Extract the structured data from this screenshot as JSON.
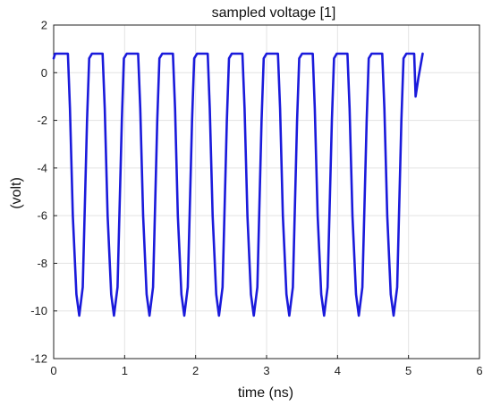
{
  "chart_data": {
    "type": "line",
    "title": "sampled voltage [1]",
    "xlabel": "time (ns)",
    "ylabel": "(volt)",
    "xlim": [
      0,
      6
    ],
    "ylim": [
      -12,
      2
    ],
    "xticks": [
      "0",
      "1",
      "2",
      "3",
      "4",
      "5",
      "6"
    ],
    "yticks": [
      "2",
      "0",
      "-2",
      "-4",
      "-6",
      "-8",
      "-10",
      "-12"
    ],
    "grid": true,
    "line_color": "#1a1adb",
    "series": [
      {
        "x": [
          0.0,
          0.02,
          0.2,
          0.23,
          0.27,
          0.32,
          0.36,
          0.41,
          0.47,
          0.5,
          0.54,
          0.69,
          0.72,
          0.76,
          0.81,
          0.85,
          0.9,
          0.96,
          0.99,
          1.03,
          1.19,
          1.22,
          1.26,
          1.31,
          1.35,
          1.4,
          1.46,
          1.49,
          1.53,
          1.68,
          1.71,
          1.75,
          1.8,
          1.84,
          1.89,
          1.95,
          1.98,
          2.02,
          2.17,
          2.2,
          2.24,
          2.29,
          2.33,
          2.38,
          2.44,
          2.47,
          2.51,
          2.66,
          2.69,
          2.73,
          2.78,
          2.82,
          2.87,
          2.93,
          2.96,
          3.0,
          3.16,
          3.19,
          3.23,
          3.28,
          3.32,
          3.37,
          3.43,
          3.46,
          3.5,
          3.65,
          3.68,
          3.72,
          3.77,
          3.81,
          3.86,
          3.92,
          3.95,
          3.99,
          4.14,
          4.17,
          4.21,
          4.26,
          4.3,
          4.35,
          4.41,
          4.44,
          4.48,
          4.63,
          4.66,
          4.7,
          4.75,
          4.79,
          4.84,
          4.9,
          4.93,
          4.97,
          5.08,
          5.1,
          5.14,
          5.2
        ],
        "y": [
          0.6,
          0.8,
          0.8,
          -1.5,
          -6.0,
          -9.3,
          -10.2,
          -9.0,
          -2.0,
          0.6,
          0.8,
          0.8,
          -1.5,
          -6.0,
          -9.3,
          -10.2,
          -9.0,
          -2.0,
          0.6,
          0.8,
          0.8,
          -1.5,
          -6.0,
          -9.3,
          -10.2,
          -9.0,
          -2.0,
          0.6,
          0.8,
          0.8,
          -1.5,
          -6.0,
          -9.3,
          -10.2,
          -9.0,
          -2.0,
          0.6,
          0.8,
          0.8,
          -1.5,
          -6.0,
          -9.3,
          -10.2,
          -9.0,
          -2.0,
          0.6,
          0.8,
          0.8,
          -1.5,
          -6.0,
          -9.3,
          -10.2,
          -9.0,
          -2.0,
          0.6,
          0.8,
          0.8,
          -1.5,
          -6.0,
          -9.3,
          -10.2,
          -9.0,
          -2.0,
          0.6,
          0.8,
          0.8,
          -1.5,
          -6.0,
          -9.3,
          -10.2,
          -9.0,
          -2.0,
          0.6,
          0.8,
          0.8,
          -1.5,
          -6.0,
          -9.3,
          -10.2,
          -9.0,
          -2.0,
          0.6,
          0.8,
          0.8,
          -1.5,
          -6.0,
          -9.3,
          -10.2,
          -9.0,
          -2.0,
          0.6,
          0.8,
          0.8,
          -1.0,
          -0.2,
          0.8
        ]
      }
    ]
  }
}
